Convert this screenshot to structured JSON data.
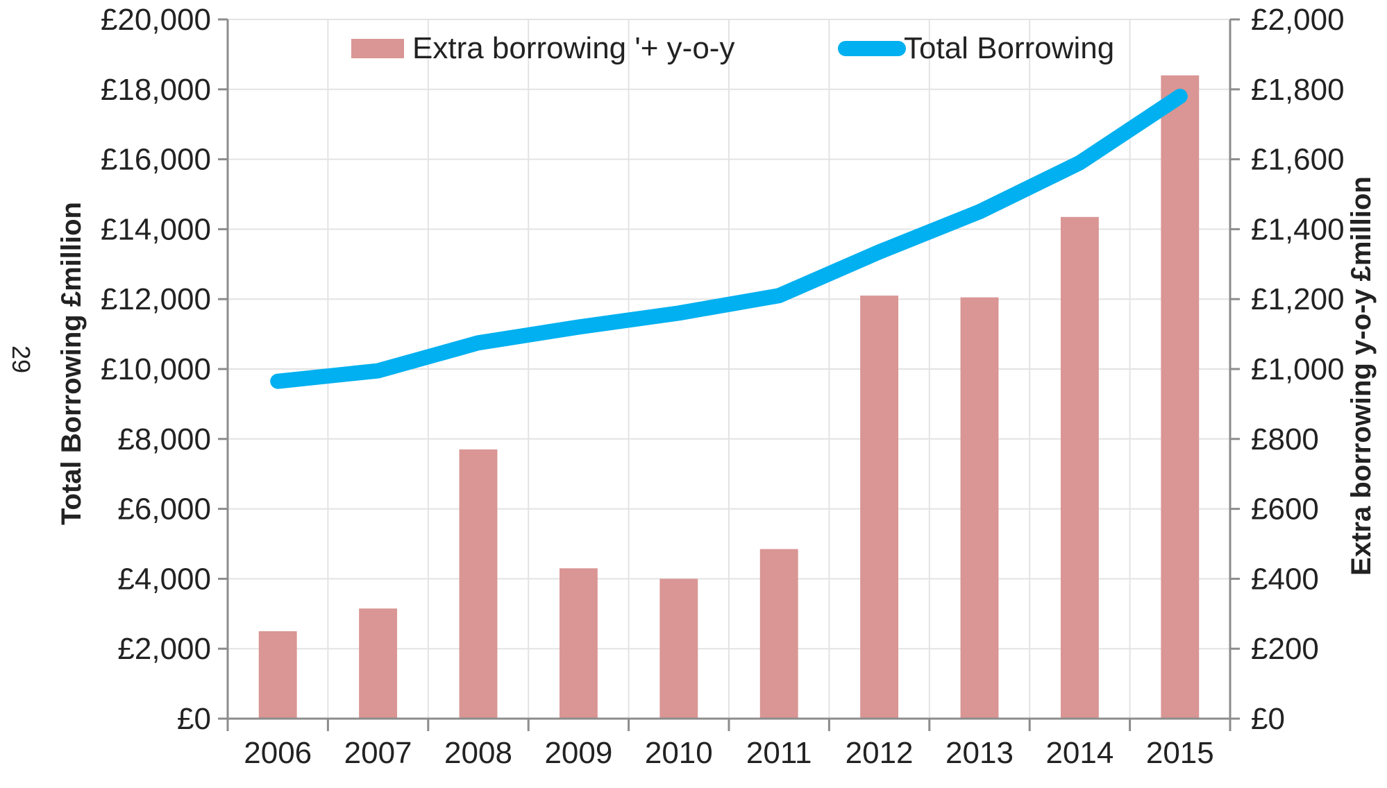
{
  "page": {
    "page_number": "29"
  },
  "chart_data": {
    "type": "bar",
    "categories": [
      "2006",
      "2007",
      "2008",
      "2009",
      "2010",
      "2011",
      "2012",
      "2013",
      "2014",
      "2015"
    ],
    "series": [
      {
        "name": "Extra borrowing '+  y-o-y",
        "type": "bar",
        "axis": "right",
        "color": "#d99694",
        "values": [
          250,
          315,
          770,
          430,
          400,
          485,
          1210,
          1205,
          1435,
          1840
        ]
      },
      {
        "name": "Total Borrowing",
        "type": "line",
        "axis": "left",
        "color": "#00b0f0",
        "values": [
          9650,
          9950,
          10750,
          11200,
          11600,
          12100,
          13350,
          14500,
          15900,
          17800
        ]
      }
    ],
    "ylabel": "Total Borrowing £million",
    "ylabel_right": "Extra borrowing y-o-y £million",
    "ylim": [
      0,
      20000
    ],
    "ylim_right": [
      0,
      2000
    ],
    "yticks": [
      "£0",
      "£2,000",
      "£4,000",
      "£6,000",
      "£8,000",
      "£10,000",
      "£12,000",
      "£14,000",
      "£16,000",
      "£18,000",
      "£20,000"
    ],
    "yticks_right": [
      "£0",
      "£200",
      "£400",
      "£600",
      "£800",
      "£1,000",
      "£1,200",
      "£1,400",
      "£1,600",
      "£1,800",
      "£2,000"
    ],
    "grid": true,
    "legend_position": "top"
  }
}
